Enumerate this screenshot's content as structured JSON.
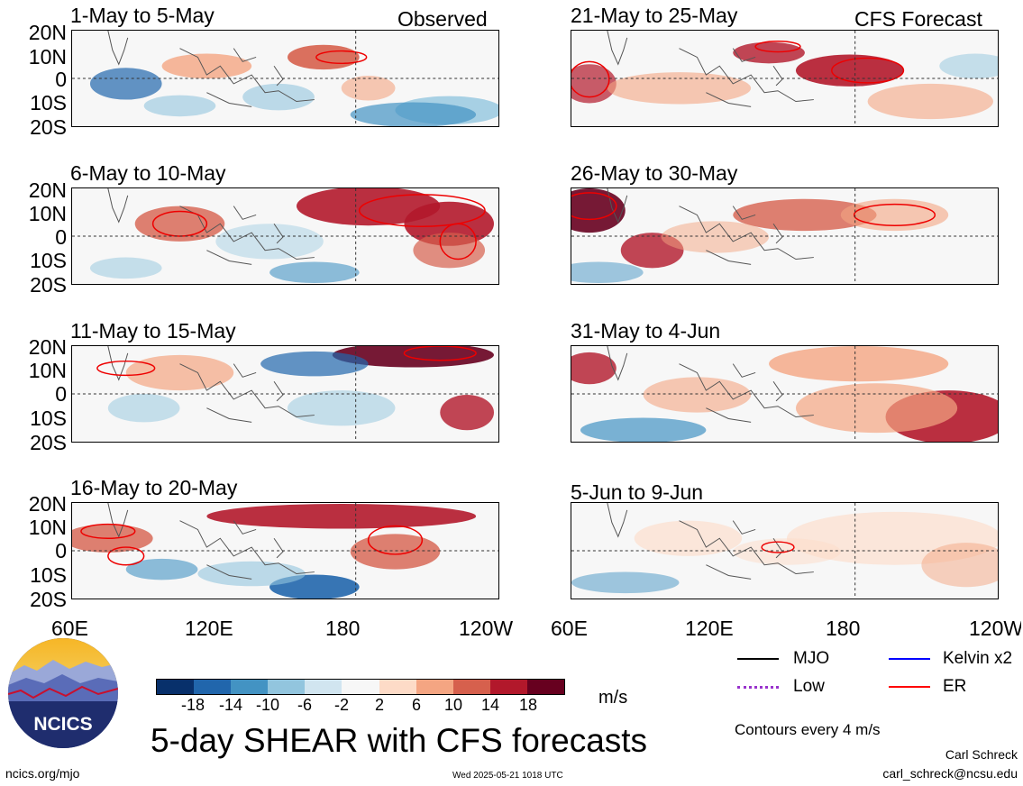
{
  "panels": [
    {
      "id": "p1",
      "title": "1-May to 5-May",
      "tag": "Observed",
      "column": "left",
      "row": 0
    },
    {
      "id": "p2",
      "title": "6-May to 10-May",
      "tag": "",
      "column": "left",
      "row": 1
    },
    {
      "id": "p3",
      "title": "11-May to 15-May",
      "tag": "",
      "column": "left",
      "row": 2
    },
    {
      "id": "p4",
      "title": "16-May to 20-May",
      "tag": "",
      "column": "left",
      "row": 3
    },
    {
      "id": "p5",
      "title": "21-May to 25-May",
      "tag": "CFS Forecast",
      "column": "right",
      "row": 0
    },
    {
      "id": "p6",
      "title": "26-May to 30-May",
      "tag": "",
      "column": "right",
      "row": 1
    },
    {
      "id": "p7",
      "title": "31-May to 4-Jun",
      "tag": "",
      "column": "right",
      "row": 2
    },
    {
      "id": "p8",
      "title": "5-Jun to 9-Jun",
      "tag": "",
      "column": "right",
      "row": 3
    }
  ],
  "lat_labels": [
    "20N",
    "10N",
    "0",
    "10S",
    "20S"
  ],
  "lon_labels": [
    "60E",
    "120E",
    "180",
    "120W"
  ],
  "colorbar": {
    "ticks": [
      "-18",
      "-14",
      "-10",
      "-6",
      "-2",
      "2",
      "6",
      "10",
      "14",
      "18"
    ],
    "colors": [
      "#08306b",
      "#2166ac",
      "#4393c3",
      "#92c5de",
      "#d1e5f0",
      "#f7f7f7",
      "#fddbc7",
      "#f4a582",
      "#d6604d",
      "#b2182b",
      "#67001f"
    ],
    "units": "m/s"
  },
  "title": "5-day SHEAR with CFS forecasts",
  "legend": [
    {
      "label": "MJO",
      "color": "#000000",
      "style": "solid"
    },
    {
      "label": "Kelvin x2",
      "color": "#0000ff",
      "style": "solid"
    },
    {
      "label": "Low",
      "color": "#9933cc",
      "style": "dotted"
    },
    {
      "label": "ER",
      "color": "#ff0000",
      "style": "solid"
    }
  ],
  "contour_note": "Contours every 4 m/s",
  "logo_text": "NCICS",
  "website": "ncics.org/mjo",
  "timestamp": "Wed 2025-05-21 1018 UTC",
  "author": "Carl Schreck",
  "email": "carl_schreck@ncsu.edu"
}
